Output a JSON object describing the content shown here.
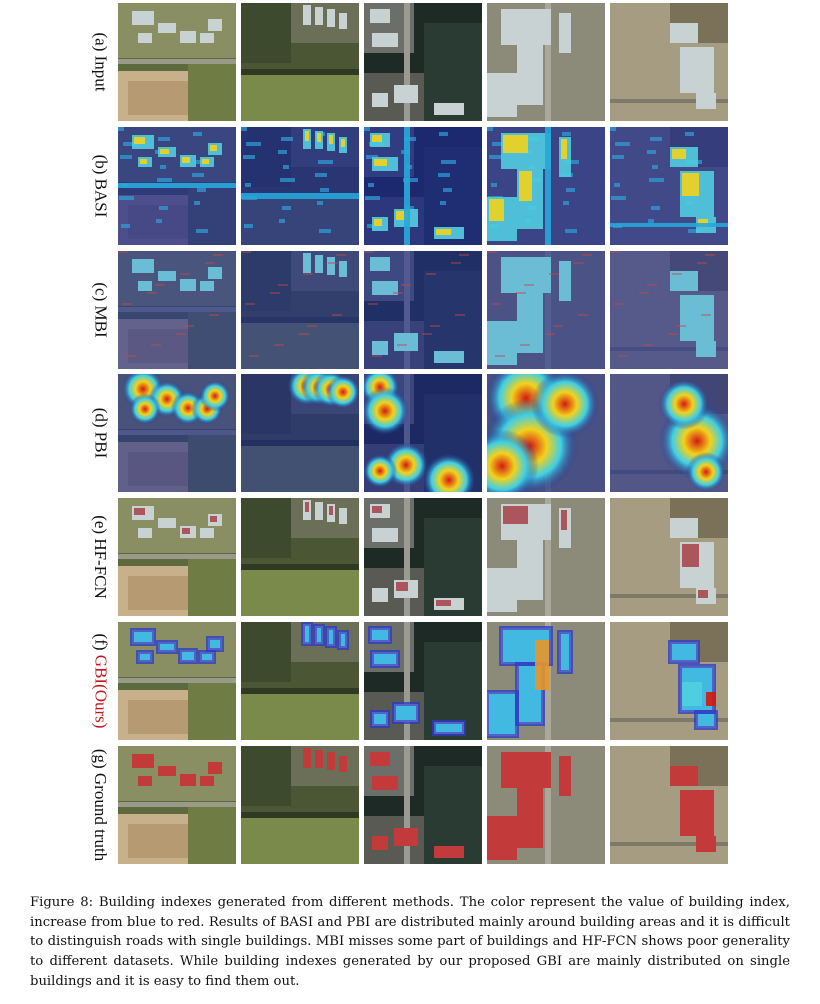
{
  "figure": {
    "rows": [
      {
        "label": "(a) Input",
        "method": "",
        "style": "input"
      },
      {
        "label": "(b) BASI",
        "method": "",
        "style": "basi"
      },
      {
        "label": "(c) MBI",
        "method": "",
        "style": "mbi"
      },
      {
        "label": "(d) PBI",
        "method": "",
        "style": "pbi"
      },
      {
        "label": "(e) HF-FCN",
        "method": "",
        "style": "hffcn"
      },
      {
        "label": "(f) ",
        "method": "GBI(Ours)",
        "style": "gbi"
      },
      {
        "label": "(g) Ground truth",
        "method": "",
        "style": "gt"
      }
    ],
    "columns": 5,
    "colors": {
      "blue": "#1c2a8c",
      "red": "#d41a12",
      "highlight": "#c0161c"
    }
  },
  "caption": "Figure 8: Building indexes generated from different methods. The color represent the value of building index, increase from blue to red. Results of BASI and PBI are distributed mainly around building areas and it is difficult to distinguish roads with single buildings. MBI misses some part of buildings and HF-FCN shows poor generality to different datasets. While building indexes generated by our proposed GBI are mainly distributed on single buildings and it is easy to find them out."
}
